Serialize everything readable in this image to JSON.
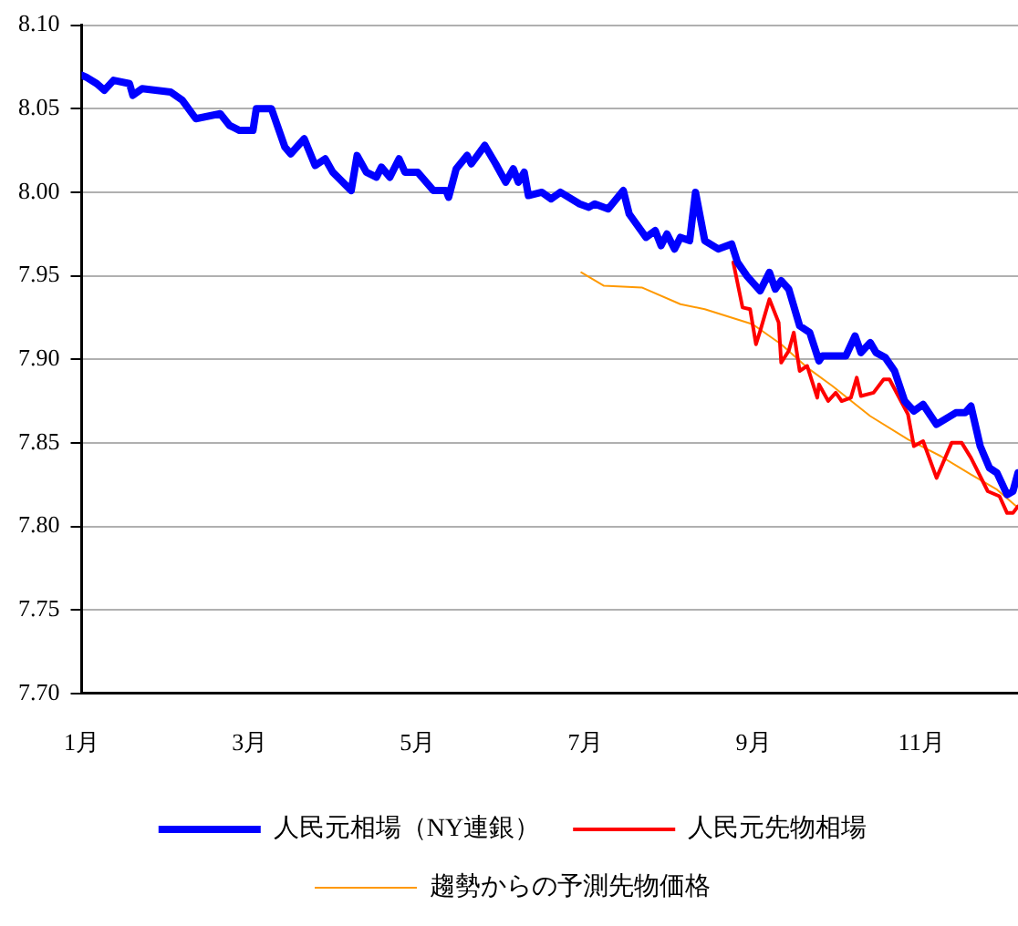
{
  "chart_data": {
    "type": "line",
    "xlim": [
      1,
      12.15
    ],
    "xticks": [
      {
        "value": 1,
        "label": "1月"
      },
      {
        "value": 3,
        "label": "3月"
      },
      {
        "value": 5,
        "label": "5月"
      },
      {
        "value": 7,
        "label": "7月"
      },
      {
        "value": 9,
        "label": "9月"
      },
      {
        "value": 11,
        "label": "11月"
      }
    ],
    "ylim": [
      7.7,
      8.1
    ],
    "yticks": [
      {
        "value": 7.7,
        "label": "7.70"
      },
      7.75,
      {
        "value": 7.8,
        "label": "7.80"
      },
      7.85,
      {
        "value": 7.9,
        "label": "7.90"
      },
      7.95,
      {
        "value": 8.0,
        "label": "8.00"
      },
      8.05,
      {
        "value": 8.1,
        "label": "8.10"
      }
    ],
    "grid": "y",
    "legend": "bottom",
    "marker": "none",
    "line_style": "solid",
    "series": [
      {
        "name": "人民元相場（NY連銀）",
        "color": "#0000ff",
        "x": [
          1.0,
          1.05,
          1.18,
          1.27,
          1.38,
          1.57,
          1.61,
          1.72,
          2.06,
          2.2,
          2.36,
          2.65,
          2.76,
          2.88,
          3.04,
          3.08,
          3.26,
          3.42,
          3.49,
          3.65,
          3.78,
          3.9,
          3.99,
          4.21,
          4.28,
          4.39,
          4.51,
          4.57,
          4.67,
          4.78,
          4.85,
          5.0,
          5.19,
          5.34,
          5.37,
          5.46,
          5.59,
          5.64,
          5.8,
          5.93,
          6.05,
          6.14,
          6.2,
          6.27,
          6.32,
          6.48,
          6.59,
          6.7,
          6.93,
          7.04,
          7.11,
          7.27,
          7.45,
          7.52,
          7.72,
          7.83,
          7.9,
          7.97,
          8.06,
          8.13,
          8.24,
          8.31,
          8.42,
          8.58,
          8.74,
          8.81,
          8.92,
          9.08,
          9.19,
          9.26,
          9.33,
          9.42,
          9.55,
          9.67,
          9.78,
          9.82,
          10.1,
          10.21,
          10.28,
          10.39,
          10.46,
          10.57,
          10.68,
          10.8,
          10.91,
          11.02,
          11.18,
          11.41,
          11.52,
          11.59,
          11.7,
          11.81,
          11.9,
          12.02,
          12.09,
          12.15
        ],
        "values": [
          8.07,
          8.069,
          8.065,
          8.061,
          8.067,
          8.065,
          8.058,
          8.062,
          8.06,
          8.055,
          8.044,
          8.047,
          8.04,
          8.037,
          8.037,
          8.05,
          8.05,
          8.027,
          8.023,
          8.032,
          8.016,
          8.02,
          8.012,
          8.001,
          8.022,
          8.012,
          8.009,
          8.015,
          8.009,
          8.02,
          8.012,
          8.012,
          8.001,
          8.001,
          7.997,
          8.014,
          8.022,
          8.017,
          8.028,
          8.017,
          8.006,
          8.014,
          8.006,
          8.012,
          7.998,
          8.0,
          7.996,
          8.0,
          7.993,
          7.991,
          7.993,
          7.99,
          8.001,
          7.987,
          7.973,
          7.977,
          7.968,
          7.975,
          7.966,
          7.973,
          7.971,
          8.0,
          7.971,
          7.966,
          7.969,
          7.958,
          7.95,
          7.941,
          7.952,
          7.942,
          7.947,
          7.942,
          7.92,
          7.916,
          7.899,
          7.902,
          7.902,
          7.914,
          7.904,
          7.91,
          7.904,
          7.901,
          7.893,
          7.875,
          7.869,
          7.873,
          7.861,
          7.868,
          7.868,
          7.872,
          7.848,
          7.835,
          7.832,
          7.819,
          7.821,
          7.832
        ]
      },
      {
        "name": "人民元先物相場",
        "color": "#ff0000",
        "x": [
          8.76,
          8.87,
          8.96,
          9.03,
          9.08,
          9.19,
          9.3,
          9.33,
          9.42,
          9.48,
          9.55,
          9.64,
          9.76,
          9.78,
          9.89,
          9.98,
          10.05,
          10.16,
          10.23,
          10.28,
          10.43,
          10.55,
          10.62,
          10.84,
          10.91,
          11.02,
          11.18,
          11.36,
          11.48,
          11.59,
          11.79,
          11.93,
          12.02,
          12.09,
          12.15
        ],
        "values": [
          7.958,
          7.931,
          7.93,
          7.909,
          7.917,
          7.936,
          7.922,
          7.898,
          7.905,
          7.916,
          7.893,
          7.896,
          7.877,
          7.885,
          7.875,
          7.88,
          7.875,
          7.877,
          7.889,
          7.878,
          7.88,
          7.888,
          7.888,
          7.867,
          7.848,
          7.851,
          7.829,
          7.85,
          7.85,
          7.841,
          7.821,
          7.818,
          7.808,
          7.808,
          7.812
        ]
      },
      {
        "name": "趨勢からの予測先物価格",
        "color": "#ff9900",
        "x": [
          6.95,
          7.22,
          7.67,
          8.13,
          8.42,
          8.99,
          9.33,
          9.64,
          9.94,
          10.39,
          10.84,
          11.23,
          11.59,
          11.9,
          12.13
        ],
        "values": [
          7.952,
          7.944,
          7.943,
          7.933,
          7.93,
          7.921,
          7.909,
          7.895,
          7.884,
          7.866,
          7.852,
          7.842,
          7.831,
          7.822,
          7.812
        ]
      }
    ]
  }
}
